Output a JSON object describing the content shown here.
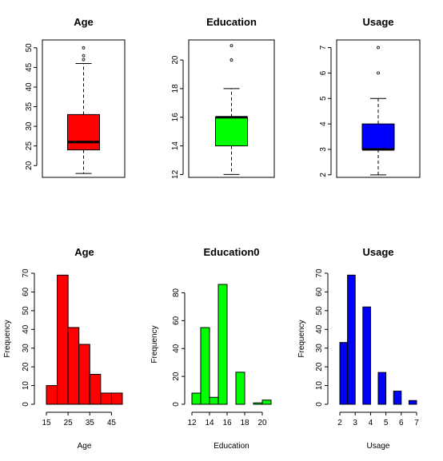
{
  "chart_data": [
    {
      "type": "boxplot",
      "title": "Age",
      "xlabel": "",
      "ylabel": "",
      "ylim": [
        17,
        52
      ],
      "yticks": [
        20,
        25,
        30,
        35,
        40,
        45,
        50
      ],
      "color": "#ff0000",
      "stats": {
        "min": 18,
        "q1": 24,
        "median": 26,
        "q3": 33,
        "max": 46
      },
      "outliers": [
        47,
        48,
        50
      ]
    },
    {
      "type": "boxplot",
      "title": "Education",
      "xlabel": "",
      "ylabel": "",
      "ylim": [
        11.8,
        21.4
      ],
      "yticks": [
        12,
        14,
        16,
        18,
        20
      ],
      "color": "#00ff00",
      "stats": {
        "min": 12,
        "q1": 14,
        "median": 16,
        "q3": 16,
        "max": 18
      },
      "outliers": [
        20,
        21
      ]
    },
    {
      "type": "boxplot",
      "title": "Usage",
      "xlabel": "",
      "ylabel": "",
      "ylim": [
        1.9,
        7.3
      ],
      "yticks": [
        2,
        3,
        4,
        5,
        6,
        7
      ],
      "color": "#0000ff",
      "stats": {
        "min": 2,
        "q1": 3,
        "median": 3,
        "q3": 4,
        "max": 5
      },
      "outliers": [
        6,
        7
      ]
    },
    {
      "type": "bar",
      "subtype": "histogram",
      "title": "Age",
      "xlabel": "Age",
      "ylabel": "Frequency",
      "color": "#ff0000",
      "xlim": [
        15,
        50
      ],
      "xticks": [
        15,
        25,
        35,
        45
      ],
      "ylim": [
        0,
        70
      ],
      "yticks": [
        0,
        10,
        20,
        30,
        40,
        50,
        60,
        70
      ],
      "bins": [
        [
          15,
          20
        ],
        [
          20,
          25
        ],
        [
          25,
          30
        ],
        [
          30,
          35
        ],
        [
          35,
          40
        ],
        [
          40,
          45
        ],
        [
          45,
          50
        ]
      ],
      "values": [
        10,
        69,
        41,
        32,
        16,
        6,
        6
      ]
    },
    {
      "type": "bar",
      "subtype": "histogram",
      "title": "Education0",
      "xlabel": "Education",
      "ylabel": "Frequency",
      "color": "#00ff00",
      "xlim": [
        12,
        21
      ],
      "xticks": [
        12,
        14,
        16,
        18,
        20
      ],
      "ylim": [
        0,
        86
      ],
      "yticks": [
        0,
        20,
        40,
        60,
        80
      ],
      "bins": [
        [
          12,
          13
        ],
        [
          13,
          14
        ],
        [
          14,
          15
        ],
        [
          15,
          16
        ],
        [
          16,
          17
        ],
        [
          17,
          18
        ],
        [
          18,
          19
        ],
        [
          19,
          20
        ],
        [
          20,
          21
        ]
      ],
      "values": [
        8,
        55,
        5,
        86,
        0,
        23,
        0,
        1,
        3
      ]
    },
    {
      "type": "bar",
      "subtype": "histogram",
      "title": "Usage",
      "xlabel": "Usage",
      "ylabel": "Frequency",
      "color": "#0000ff",
      "xlim": [
        2,
        7
      ],
      "xticks": [
        2,
        3,
        4,
        5,
        6,
        7
      ],
      "ylim": [
        0,
        70
      ],
      "yticks": [
        0,
        10,
        20,
        30,
        40,
        50,
        60,
        70
      ],
      "bins": [
        [
          2,
          2.5
        ],
        [
          2.5,
          3
        ],
        [
          3,
          3.5
        ],
        [
          3.5,
          4
        ],
        [
          4,
          4.5
        ],
        [
          4.5,
          5
        ],
        [
          5,
          5.5
        ],
        [
          5.5,
          6
        ],
        [
          6,
          6.5
        ],
        [
          6.5,
          7
        ]
      ],
      "values": [
        33,
        69,
        0,
        52,
        0,
        17,
        0,
        7,
        0,
        2
      ]
    }
  ]
}
